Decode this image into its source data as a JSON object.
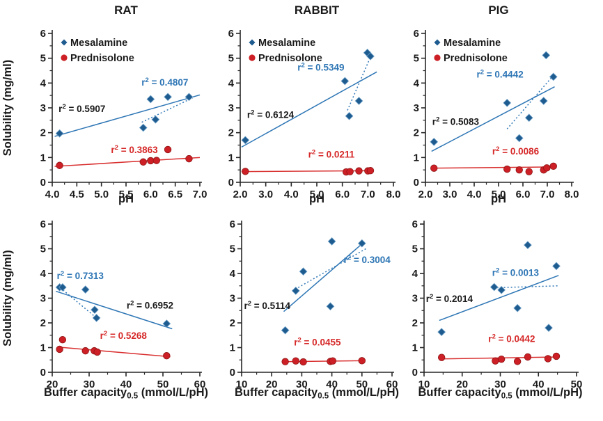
{
  "figure": {
    "ylabel": "Solubility (mg/ml)",
    "legend": [
      {
        "label": "Mesalamine",
        "marker": "diamond"
      },
      {
        "label": "Prednisolone",
        "marker": "circle"
      }
    ],
    "palette": {
      "mesalamine_marker": "#1E5C90",
      "mesalamine_marker_edge": "#6FA0C8",
      "mesalamine_line": "#2E76B5",
      "mesalamine_label": "#2E76B5",
      "prednisolone_marker": "#CD2026",
      "prednisolone_marker_edge": "#8E1313",
      "prednisolone_line": "#D93030",
      "prednisolone_label": "#D62828",
      "axis": "#262626",
      "text": "#1A1A1A"
    }
  },
  "chart_data": [
    {
      "id": "rat-ph",
      "type": "scatter",
      "title": "RAT",
      "xlabel_parts": [
        {
          "t": "pH"
        }
      ],
      "xlim": [
        4,
        7
      ],
      "xtick_values": [
        4,
        4.5,
        5,
        5.5,
        6,
        6.5,
        7
      ],
      "xtick_labels": [
        "4.0",
        "4.5",
        "5.0",
        "5.5",
        "6.0",
        "6.5",
        "7.0"
      ],
      "ylim": [
        0,
        6
      ],
      "ytick_values": [
        0,
        1,
        2,
        3,
        4,
        5,
        6
      ],
      "show_legend": true,
      "show_ylabel": true,
      "series": [
        {
          "name": "Mesalamine",
          "points": [
            [
              4.15,
              1.97
            ],
            [
              5.85,
              2.2
            ],
            [
              6.0,
              3.35
            ],
            [
              6.1,
              2.53
            ],
            [
              6.35,
              3.44
            ],
            [
              6.78,
              3.44
            ]
          ]
        },
        {
          "name": "Prednisolone",
          "points": [
            [
              4.15,
              0.68
            ],
            [
              5.85,
              0.82
            ],
            [
              6.0,
              0.87
            ],
            [
              6.12,
              0.88
            ],
            [
              6.35,
              1.32
            ],
            [
              6.78,
              0.95
            ]
          ]
        }
      ],
      "trends": [
        {
          "line": "solid",
          "color": "#2E76B5",
          "x1": 4.05,
          "y1": 1.85,
          "x2": 7.0,
          "y2": 3.52,
          "r2": "0.5907",
          "lx": 4.13,
          "ly": 2.83,
          "anchor": "start",
          "lcolor": "#1A1A1A"
        },
        {
          "line": "dotted",
          "color": "#2E76B5",
          "x1": 5.82,
          "y1": 2.42,
          "x2": 6.85,
          "y2": 3.4,
          "r2": "0.4807",
          "lx": 6.29,
          "ly": 3.9,
          "anchor": "middle",
          "lcolor": "#2E76B5"
        },
        {
          "line": "solid",
          "color": "#D93030",
          "x1": 4.05,
          "y1": 0.64,
          "x2": 7.0,
          "y2": 1.0,
          "r2": "0.3863",
          "lx": 5.67,
          "ly": 1.18,
          "anchor": "middle",
          "lcolor": "#D62828"
        }
      ]
    },
    {
      "id": "rabbit-ph",
      "type": "scatter",
      "title": "RABBIT",
      "xlabel_parts": [
        {
          "t": "pH"
        }
      ],
      "xlim": [
        2,
        8
      ],
      "xtick_values": [
        2,
        3,
        4,
        5,
        6,
        7,
        8
      ],
      "xtick_labels": [
        "2.0",
        "3.0",
        "4.0",
        "5.0",
        "6.0",
        "7.0",
        "8.0"
      ],
      "ylim": [
        0,
        6
      ],
      "ytick_values": [
        0,
        1,
        2,
        3,
        4,
        5,
        6
      ],
      "show_legend": true,
      "show_ylabel": false,
      "series": [
        {
          "name": "Mesalamine",
          "points": [
            [
              2.2,
              1.7
            ],
            [
              6.1,
              4.08
            ],
            [
              6.27,
              2.67
            ],
            [
              6.65,
              3.28
            ],
            [
              6.98,
              5.22
            ],
            [
              7.1,
              5.08
            ]
          ]
        },
        {
          "name": "Prednisolone",
          "points": [
            [
              2.2,
              0.44
            ],
            [
              6.15,
              0.42
            ],
            [
              6.3,
              0.43
            ],
            [
              6.65,
              0.46
            ],
            [
              7.0,
              0.46
            ],
            [
              7.1,
              0.47
            ]
          ]
        }
      ],
      "trends": [
        {
          "line": "solid",
          "color": "#2E76B5",
          "x1": 2.05,
          "y1": 1.42,
          "x2": 7.35,
          "y2": 4.45,
          "r2": "0.6124",
          "lx": 2.27,
          "ly": 2.6,
          "anchor": "start",
          "lcolor": "#1A1A1A"
        },
        {
          "line": "dotted",
          "color": "#2E76B5",
          "x1": 6.2,
          "y1": 2.9,
          "x2": 7.08,
          "y2": 5.0,
          "r2": "0.5349",
          "lx": 5.16,
          "ly": 4.5,
          "anchor": "middle",
          "lcolor": "#2E76B5"
        },
        {
          "line": "solid",
          "color": "#D93030",
          "x1": 2.05,
          "y1": 0.43,
          "x2": 7.2,
          "y2": 0.47,
          "r2": "0.0211",
          "lx": 5.57,
          "ly": 1.0,
          "anchor": "middle",
          "lcolor": "#D62828"
        }
      ]
    },
    {
      "id": "pig-ph",
      "type": "scatter",
      "title": "PIG",
      "xlabel_parts": [
        {
          "t": "pH"
        }
      ],
      "xlim": [
        2,
        8
      ],
      "xtick_values": [
        2,
        3,
        4,
        5,
        6,
        7,
        8
      ],
      "xtick_labels": [
        "2.0",
        "3.0",
        "4.0",
        "5.0",
        "6.0",
        "7.0",
        "8.0"
      ],
      "ylim": [
        0,
        6
      ],
      "ytick_values": [
        0,
        1,
        2,
        3,
        4,
        5,
        6
      ],
      "show_legend": true,
      "show_ylabel": false,
      "series": [
        {
          "name": "Mesalamine",
          "points": [
            [
              2.35,
              1.63
            ],
            [
              5.35,
              3.2
            ],
            [
              5.85,
              1.78
            ],
            [
              6.25,
              2.6
            ],
            [
              6.85,
              3.28
            ],
            [
              6.95,
              5.12
            ],
            [
              7.25,
              4.25
            ]
          ]
        },
        {
          "name": "Prednisolone",
          "points": [
            [
              2.35,
              0.57
            ],
            [
              5.35,
              0.53
            ],
            [
              5.85,
              0.5
            ],
            [
              6.25,
              0.43
            ],
            [
              6.85,
              0.5
            ],
            [
              6.98,
              0.58
            ],
            [
              7.25,
              0.65
            ]
          ]
        }
      ],
      "trends": [
        {
          "line": "solid",
          "color": "#2E76B5",
          "x1": 2.25,
          "y1": 1.25,
          "x2": 7.3,
          "y2": 3.85,
          "r2": "0.5083",
          "lx": 2.28,
          "ly": 2.32,
          "anchor": "start",
          "lcolor": "#1A1A1A"
        },
        {
          "line": "dotted",
          "color": "#2E76B5",
          "x1": 5.35,
          "y1": 2.15,
          "x2": 7.2,
          "y2": 4.25,
          "r2": "0.4442",
          "lx": 5.06,
          "ly": 4.22,
          "anchor": "middle",
          "lcolor": "#2E76B5"
        },
        {
          "line": "solid",
          "color": "#D93030",
          "x1": 2.25,
          "y1": 0.57,
          "x2": 7.3,
          "y2": 0.62,
          "r2": "0.0086",
          "lx": 5.7,
          "ly": 1.12,
          "anchor": "middle",
          "lcolor": "#D62828"
        }
      ]
    },
    {
      "id": "rat-buffer",
      "type": "scatter",
      "title": "",
      "xlabel_parts": [
        {
          "t": "Buffer capacity"
        },
        {
          "t": "0.5",
          "sub": true
        },
        {
          "t": " (mmol/L/pH)"
        }
      ],
      "xlim": [
        20,
        60
      ],
      "xtick_values": [
        20,
        30,
        40,
        50,
        60
      ],
      "xtick_labels": [
        "20",
        "30",
        "40",
        "50",
        "60"
      ],
      "ylim": [
        0,
        6
      ],
      "ytick_values": [
        0,
        1,
        2,
        3,
        4,
        5,
        6
      ],
      "show_legend": false,
      "show_ylabel": true,
      "series": [
        {
          "name": "Mesalamine",
          "points": [
            [
              22,
              3.44
            ],
            [
              22.8,
              3.44
            ],
            [
              29,
              3.35
            ],
            [
              31.5,
              2.53
            ],
            [
              32,
              2.2
            ],
            [
              51,
              1.97
            ]
          ]
        },
        {
          "name": "Prednisolone",
          "points": [
            [
              22,
              0.93
            ],
            [
              22.8,
              1.32
            ],
            [
              29,
              0.87
            ],
            [
              31.4,
              0.87
            ],
            [
              32.2,
              0.82
            ],
            [
              51,
              0.67
            ]
          ]
        }
      ],
      "trends": [
        {
          "line": "solid",
          "color": "#2E76B5",
          "x1": 21.0,
          "y1": 3.28,
          "x2": 52.5,
          "y2": 1.76,
          "r2": "0.6952",
          "lx": 46.5,
          "ly": 2.58,
          "anchor": "middle",
          "lcolor": "#1A1A1A"
        },
        {
          "line": "dotted",
          "color": "#2E76B5",
          "x1": 22.2,
          "y1": 3.42,
          "x2": 32.8,
          "y2": 2.1,
          "r2": "0.7313",
          "lx": 27.6,
          "ly": 3.78,
          "anchor": "middle",
          "lcolor": "#2E76B5"
        },
        {
          "line": "solid",
          "color": "#D93030",
          "x1": 21.5,
          "y1": 1.02,
          "x2": 52.0,
          "y2": 0.63,
          "r2": "0.5268",
          "lx": 39.3,
          "ly": 1.35,
          "anchor": "middle",
          "lcolor": "#D62828"
        }
      ]
    },
    {
      "id": "rabbit-buffer",
      "type": "scatter",
      "title": "",
      "xlabel_parts": [
        {
          "t": "Buffer capacity"
        },
        {
          "t": "0.5",
          "sub": true
        },
        {
          "t": " (mmol/L/pH)"
        }
      ],
      "xlim": [
        10,
        60
      ],
      "xtick_values": [
        10,
        20,
        30,
        40,
        50,
        60
      ],
      "xtick_labels": [
        "10",
        "20",
        "30",
        "40",
        "50",
        "60"
      ],
      "ylim": [
        0,
        6
      ],
      "ytick_values": [
        0,
        1,
        2,
        3,
        4,
        5,
        6
      ],
      "show_legend": false,
      "show_ylabel": false,
      "series": [
        {
          "name": "Mesalamine",
          "points": [
            [
              24.5,
              1.7
            ],
            [
              28,
              3.3
            ],
            [
              30.5,
              4.08
            ],
            [
              39.5,
              2.67
            ],
            [
              40,
              5.3
            ],
            [
              50,
              5.22
            ]
          ]
        },
        {
          "name": "Prednisolone",
          "points": [
            [
              24.5,
              0.43
            ],
            [
              28,
              0.46
            ],
            [
              30.5,
              0.42
            ],
            [
              39.5,
              0.44
            ],
            [
              40.3,
              0.46
            ],
            [
              50,
              0.47
            ]
          ]
        }
      ],
      "trends": [
        {
          "line": "solid",
          "color": "#2E76B5",
          "x1": 24.0,
          "y1": 2.46,
          "x2": 50.6,
          "y2": 5.26,
          "r2": "0.5114",
          "lx": 10.8,
          "ly": 2.56,
          "anchor": "start",
          "lcolor": "#1A1A1A"
        },
        {
          "line": "dotted",
          "color": "#2E76B5",
          "x1": 27.8,
          "y1": 3.36,
          "x2": 51.3,
          "y2": 5.0,
          "r2": "0.3004",
          "lx": 59.5,
          "ly": 4.42,
          "anchor": "end",
          "lcolor": "#2E76B5"
        },
        {
          "line": "solid",
          "color": "#D93030",
          "x1": 24.0,
          "y1": 0.43,
          "x2": 50.6,
          "y2": 0.47,
          "r2": "0.0455",
          "lx": 35.2,
          "ly": 1.08,
          "anchor": "middle",
          "lcolor": "#D62828"
        }
      ]
    },
    {
      "id": "pig-buffer",
      "type": "scatter",
      "title": "",
      "xlabel_parts": [
        {
          "t": "Buffer capacity"
        },
        {
          "t": "0.5",
          "sub": true
        },
        {
          "t": " (mmol/L/pH)"
        }
      ],
      "xlim": [
        10,
        50
      ],
      "xtick_values": [
        10,
        20,
        30,
        40,
        50
      ],
      "xtick_labels": [
        "10",
        "20",
        "30",
        "40",
        "50"
      ],
      "ylim": [
        0,
        6
      ],
      "ytick_values": [
        0,
        1,
        2,
        3,
        4,
        5,
        6
      ],
      "show_legend": false,
      "show_ylabel": false,
      "series": [
        {
          "name": "Mesalamine",
          "points": [
            [
              14.6,
              1.63
            ],
            [
              28.4,
              3.45
            ],
            [
              30.3,
              3.33
            ],
            [
              34.5,
              2.6
            ],
            [
              37.2,
              5.15
            ],
            [
              42.7,
              1.8
            ],
            [
              44.7,
              4.3
            ]
          ]
        },
        {
          "name": "Prednisolone",
          "points": [
            [
              14.6,
              0.6
            ],
            [
              28.7,
              0.46
            ],
            [
              30.3,
              0.53
            ],
            [
              34.5,
              0.44
            ],
            [
              37.2,
              0.62
            ],
            [
              42.5,
              0.55
            ],
            [
              44.7,
              0.65
            ]
          ]
        }
      ],
      "trends": [
        {
          "line": "solid",
          "color": "#2E76B5",
          "x1": 14.0,
          "y1": 2.1,
          "x2": 45.3,
          "y2": 3.92,
          "r2": "0.2014",
          "lx": 10.5,
          "ly": 2.85,
          "anchor": "start",
          "lcolor": "#1A1A1A"
        },
        {
          "line": "dotted",
          "color": "#2E76B5",
          "x1": 28.2,
          "y1": 3.42,
          "x2": 45.3,
          "y2": 3.5,
          "r2": "0.0013",
          "lx": 34.0,
          "ly": 3.9,
          "anchor": "middle",
          "lcolor": "#2E76B5"
        },
        {
          "line": "solid",
          "color": "#D93030",
          "x1": 14.0,
          "y1": 0.54,
          "x2": 45.3,
          "y2": 0.62,
          "r2": "0.0442",
          "lx": 33.0,
          "ly": 1.22,
          "anchor": "middle",
          "lcolor": "#D62828"
        }
      ]
    }
  ]
}
